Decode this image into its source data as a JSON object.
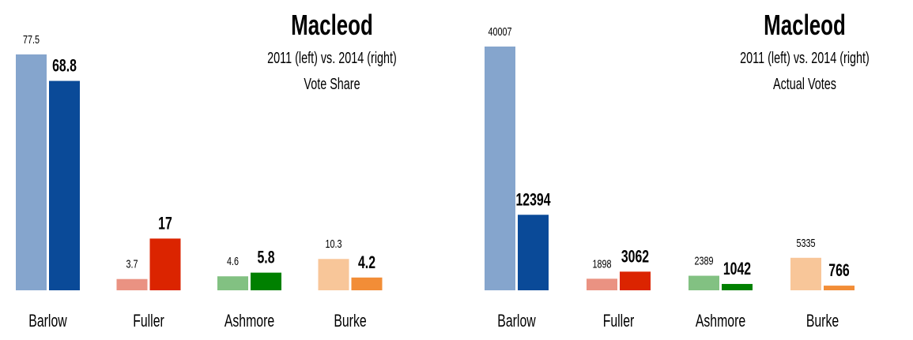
{
  "chart_data": [
    {
      "type": "bar",
      "title": "Macleod",
      "subtitle": "2011 (left) vs. 2014 (right)",
      "metric": "Vote Share",
      "categories": [
        "Barlow",
        "Fuller",
        "Ashmore",
        "Burke"
      ],
      "series": [
        {
          "name": "2011",
          "values": [
            77.5,
            3.7,
            4.6,
            10.3
          ],
          "labels": [
            "77.5",
            "3.7",
            "4.6",
            "10.3"
          ]
        },
        {
          "name": "2014",
          "values": [
            68.8,
            17,
            5.8,
            4.2
          ],
          "labels": [
            "68.8",
            "17",
            "5.8",
            "4.2"
          ]
        }
      ],
      "ylim": [
        0,
        77.5
      ],
      "grid": false
    },
    {
      "type": "bar",
      "title": "Macleod",
      "subtitle": "2011 (left) vs. 2014 (right)",
      "metric": "Actual Votes",
      "categories": [
        "Barlow",
        "Fuller",
        "Ashmore",
        "Burke"
      ],
      "series": [
        {
          "name": "2011",
          "values": [
            40007,
            1898,
            2389,
            5335
          ],
          "labels": [
            "40007",
            "1898",
            "2389",
            "5335"
          ]
        },
        {
          "name": "2014",
          "values": [
            12394,
            3062,
            1042,
            766
          ],
          "labels": [
            "12394",
            "3062",
            "1042",
            "766"
          ]
        }
      ],
      "ylim": [
        0,
        40007
      ],
      "grid": false
    }
  ],
  "colors": {
    "2011": [
      "#85a5cd",
      "#ea9282",
      "#82c182",
      "#f8c699"
    ],
    "2014": [
      "#0a4a98",
      "#db2400",
      "#008000",
      "#f28d37"
    ]
  }
}
